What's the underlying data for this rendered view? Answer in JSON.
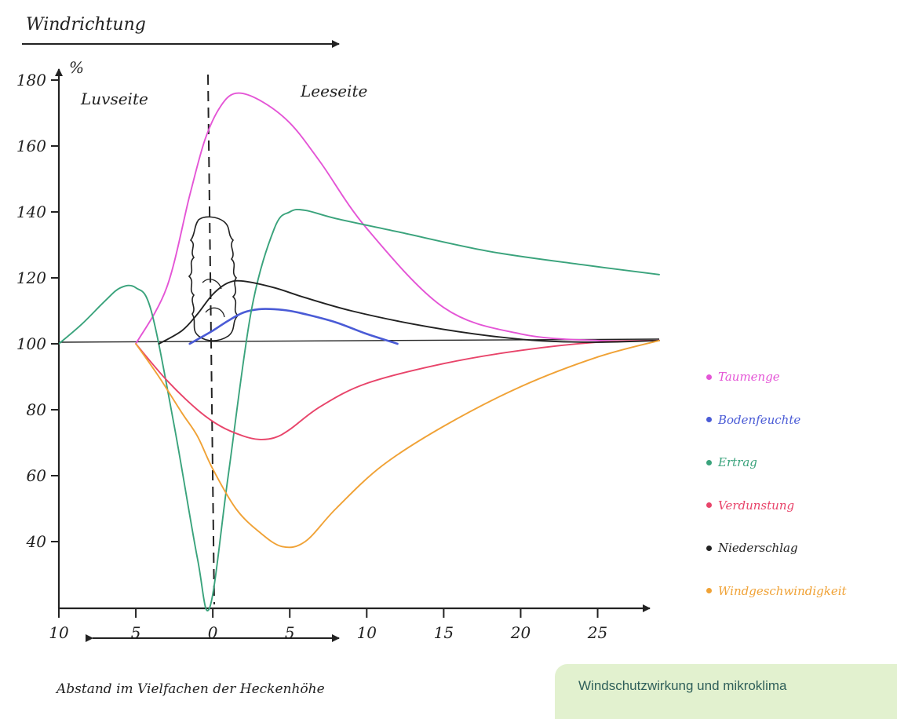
{
  "chart_data": {
    "type": "line",
    "title": "Windrichtung",
    "xlabel": "Abstand im Vielfachen der Heckenhöhe",
    "ylabel": "%",
    "xlim": [
      -10,
      29
    ],
    "ylim": [
      20,
      185
    ],
    "x_ticks": [
      -10,
      -5,
      0,
      5,
      10,
      15,
      20,
      25
    ],
    "x_tick_labels": [
      "10",
      "5",
      "0",
      "5",
      "10",
      "15",
      "20",
      "25"
    ],
    "y_ticks": [
      40,
      60,
      80,
      100,
      120,
      140,
      160,
      180
    ],
    "y_tick_labels": [
      "40",
      "60",
      "80",
      "100",
      "120",
      "140",
      "160",
      "180"
    ],
    "grid": false,
    "legend_position": "right",
    "annotations": {
      "windward": "Luvseite",
      "leeward": "Leeseite"
    },
    "series": [
      {
        "name": "Taumenge",
        "color": "#e455d6",
        "x": [
          -5,
          -3,
          -1.5,
          -0.5,
          0.5,
          1.5,
          3,
          5,
          7,
          10,
          15,
          20,
          25,
          29
        ],
        "y": [
          100,
          117,
          145,
          162,
          172,
          176,
          174,
          167,
          155,
          135,
          111,
          103,
          101,
          101
        ]
      },
      {
        "name": "Bodenfeuchte",
        "color": "#4a5bd6",
        "x": [
          -1.5,
          0,
          1,
          2,
          3,
          4,
          5,
          6,
          8,
          10,
          12
        ],
        "y": [
          100,
          104,
          107,
          109.5,
          110.5,
          110.5,
          110,
          109,
          106.5,
          103,
          100
        ]
      },
      {
        "name": "Ertrag",
        "color": "#3aa37c",
        "x": [
          -10,
          -8.5,
          -7,
          -6,
          -5,
          -4,
          -2.5,
          -1,
          -0.2,
          1,
          2.5,
          4,
          5,
          6,
          8,
          12,
          18,
          24,
          29
        ],
        "y": [
          100,
          106,
          113,
          117,
          117,
          110,
          75,
          35,
          20,
          60,
          110,
          135,
          140,
          140.5,
          138,
          134,
          128,
          124,
          121
        ]
      },
      {
        "name": "Verdunstung",
        "color": "#e8446a",
        "x": [
          -5,
          -3,
          -1,
          0.5,
          2,
          3,
          4,
          5,
          7,
          10,
          15,
          20,
          25,
          29
        ],
        "y": [
          100,
          89,
          80,
          75,
          72,
          71,
          71.5,
          74,
          81,
          88,
          94,
          98,
          100.5,
          101
        ]
      },
      {
        "name": "Niederschlag",
        "color": "#222222",
        "x": [
          -3.5,
          -2,
          -1,
          0,
          1,
          2,
          4,
          6,
          9,
          13,
          17,
          21,
          25,
          29
        ],
        "y": [
          100,
          104,
          109,
          115,
          118.5,
          119,
          117,
          114,
          110,
          106,
          103,
          101,
          100.5,
          101
        ]
      },
      {
        "name": "Windgeschwindigkeit",
        "color": "#f0a236",
        "x": [
          -5,
          -3.5,
          -2,
          -1,
          0,
          1.5,
          3,
          4.5,
          6,
          8,
          11,
          15,
          20,
          25,
          29
        ],
        "y": [
          100,
          90,
          79,
          72,
          62,
          50,
          43,
          38.5,
          40,
          50,
          63,
          75,
          87,
          96,
          101
        ]
      }
    ]
  },
  "caption": "Windschutzwirkung und mikroklima"
}
